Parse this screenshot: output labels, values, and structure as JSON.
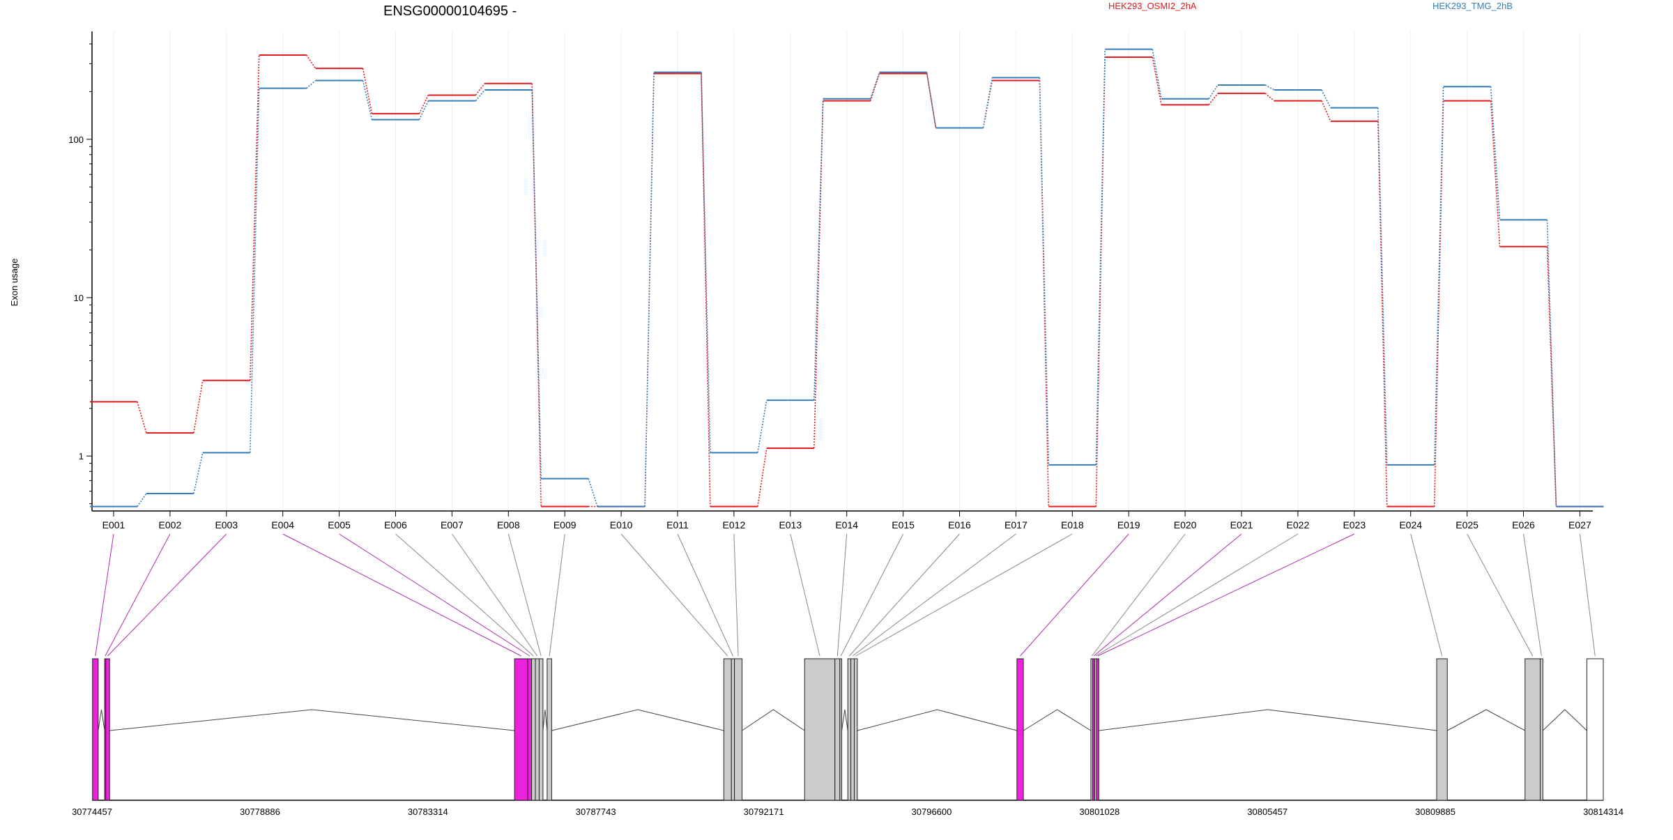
{
  "chart_data": {
    "type": "line",
    "title": "ENSG00000104695 -",
    "ylabel": "Exon usage",
    "yscale": "log",
    "ylim": [
      0.45,
      480
    ],
    "yticks": [
      "1",
      "10",
      "100"
    ],
    "categories": [
      "E001",
      "E002",
      "E003",
      "E004",
      "E005",
      "E006",
      "E007",
      "E008",
      "E009",
      "E010",
      "E011",
      "E012",
      "E013",
      "E014",
      "E015",
      "E016",
      "E017",
      "E018",
      "E019",
      "E020",
      "E021",
      "E022",
      "E023",
      "E024",
      "E025",
      "E026",
      "E027"
    ],
    "legend_position": "top",
    "series": [
      {
        "name": "HEK293_OSMI2_2hA",
        "color": "#e41a1c",
        "values": [
          2.2,
          1.4,
          3.0,
          340,
          280,
          145,
          190,
          225,
          0.48,
          0.48,
          260,
          0.48,
          1.12,
          175,
          260,
          118,
          235,
          0.48,
          330,
          165,
          195,
          175,
          130,
          0.48,
          175,
          21,
          0.48
        ]
      },
      {
        "name": "HEK293_TMG_2hB",
        "color": "#377eb8",
        "values": [
          0.48,
          0.58,
          1.05,
          210,
          235,
          133,
          175,
          205,
          0.72,
          0.48,
          265,
          1.05,
          2.25,
          180,
          265,
          118,
          245,
          0.88,
          370,
          180,
          220,
          205,
          158,
          0.88,
          215,
          31,
          0.48
        ]
      }
    ],
    "gene_model": {
      "genomic_ticks": [
        "30774457",
        "30778886",
        "30783314",
        "30787743",
        "30792171",
        "30796600",
        "30801028",
        "30805457",
        "30809885",
        "30814314"
      ],
      "genomic_range": [
        30774457,
        30814314
      ],
      "exons": [
        {
          "id": "E001",
          "start": 30774470,
          "end": 30774620,
          "sig": true
        },
        {
          "id": "E002",
          "start": 30774790,
          "end": 30774820,
          "sig": true
        },
        {
          "id": "E003",
          "start": 30774820,
          "end": 30774920,
          "sig": true
        },
        {
          "id": "E004",
          "start": 30785600,
          "end": 30785950,
          "sig": true
        },
        {
          "id": "E005",
          "start": 30785950,
          "end": 30786050,
          "sig": true
        },
        {
          "id": "E006",
          "start": 30786050,
          "end": 30786150,
          "sig": false
        },
        {
          "id": "E007",
          "start": 30786150,
          "end": 30786250,
          "sig": false
        },
        {
          "id": "E008",
          "start": 30786250,
          "end": 30786350,
          "sig": false
        },
        {
          "id": "E009",
          "start": 30786460,
          "end": 30786580,
          "sig": false
        },
        {
          "id": "E010",
          "start": 30791120,
          "end": 30791320,
          "sig": false
        },
        {
          "id": "E011",
          "start": 30791320,
          "end": 30791400,
          "sig": false
        },
        {
          "id": "E012",
          "start": 30791400,
          "end": 30791600,
          "sig": false
        },
        {
          "id": "E013",
          "start": 30793250,
          "end": 30794050,
          "sig": false
        },
        {
          "id": "E014",
          "start": 30794050,
          "end": 30794180,
          "sig": false
        },
        {
          "id": "E015",
          "start": 30794180,
          "end": 30794230,
          "sig": false
        },
        {
          "id": "E016",
          "start": 30794390,
          "end": 30794470,
          "sig": false
        },
        {
          "id": "E017",
          "start": 30794470,
          "end": 30794560,
          "sig": false
        },
        {
          "id": "E018",
          "start": 30794560,
          "end": 30794640,
          "sig": false
        },
        {
          "id": "E019",
          "start": 30798850,
          "end": 30799020,
          "sig": true
        },
        {
          "id": "E020",
          "start": 30800800,
          "end": 30800850,
          "sig": false
        },
        {
          "id": "E021",
          "start": 30800850,
          "end": 30800900,
          "sig": true
        },
        {
          "id": "E022",
          "start": 30800900,
          "end": 30800950,
          "sig": false
        },
        {
          "id": "E023",
          "start": 30800950,
          "end": 30801010,
          "sig": true
        },
        {
          "id": "E024",
          "start": 30809920,
          "end": 30810200,
          "sig": false
        },
        {
          "id": "E025",
          "start": 30812250,
          "end": 30812650,
          "sig": false
        },
        {
          "id": "E026",
          "start": 30812650,
          "end": 30812720,
          "sig": false
        },
        {
          "id": "E027",
          "start": 30813880,
          "end": 30814314,
          "sig": false
        }
      ],
      "sig_color": "#ee22dd",
      "nonsig_color": "#cccccc",
      "last_exon_color": "#ffffff"
    }
  }
}
